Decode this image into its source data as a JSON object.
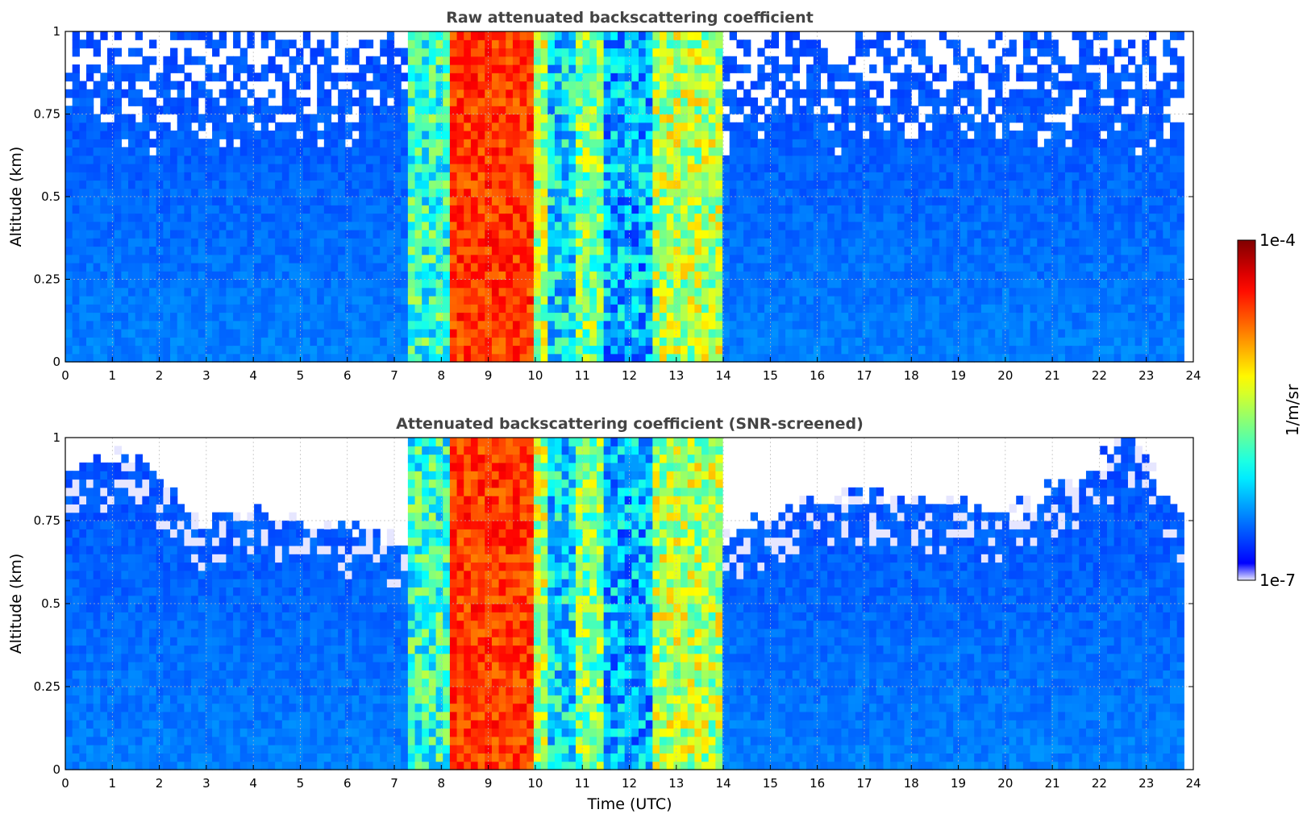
{
  "chart_data": [
    {
      "type": "heatmap",
      "title": "Raw attenuated backscattering coefficient",
      "xlabel": "",
      "ylabel": "Altitude (km)",
      "xlim": [
        0,
        24
      ],
      "ylim": [
        0,
        1
      ],
      "xticks": [
        "0",
        "1",
        "2",
        "3",
        "4",
        "5",
        "6",
        "7",
        "8",
        "9",
        "10",
        "11",
        "12",
        "13",
        "14",
        "15",
        "16",
        "17",
        "18",
        "19",
        "20",
        "21",
        "22",
        "23",
        "24"
      ],
      "yticks": [
        "0",
        "0.25",
        "0.5",
        "0.75",
        "1"
      ],
      "grid": true,
      "data_end_time": 23.8,
      "noise_top_fraction_filled": 0.6,
      "features": [
        {
          "start": 7.25,
          "end": 8.2,
          "kind": "cloud_edge",
          "intensity": 0.42
        },
        {
          "start": 8.2,
          "end": 9.9,
          "kind": "dense_cloud",
          "intensity": 0.82
        },
        {
          "start": 9.9,
          "end": 10.3,
          "kind": "cloud_edge",
          "intensity": 0.55
        },
        {
          "start": 10.3,
          "end": 10.8,
          "kind": "thin_cloud",
          "intensity": 0.35
        },
        {
          "start": 10.8,
          "end": 11.4,
          "kind": "cloud_edge",
          "intensity": 0.5
        },
        {
          "start": 11.4,
          "end": 12.5,
          "kind": "thin_cloud",
          "intensity": 0.3
        },
        {
          "start": 12.5,
          "end": 14.0,
          "kind": "cloud_edge",
          "intensity": 0.55
        }
      ]
    },
    {
      "type": "heatmap",
      "title": "Attenuated backscattering coefficient (SNR-screened)",
      "xlabel": "Time (UTC)",
      "ylabel": "Altitude (km)",
      "xlim": [
        0,
        24
      ],
      "ylim": [
        0,
        1
      ],
      "xticks": [
        "0",
        "1",
        "2",
        "3",
        "4",
        "5",
        "6",
        "7",
        "8",
        "9",
        "10",
        "11",
        "12",
        "13",
        "14",
        "15",
        "16",
        "17",
        "18",
        "19",
        "20",
        "21",
        "22",
        "23",
        "24"
      ],
      "yticks": [
        "0",
        "0.25",
        "0.5",
        "0.75",
        "1"
      ],
      "grid": true,
      "data_end_time": 23.8,
      "screen_top_altitude": [
        {
          "t": 0,
          "alt": 0.9
        },
        {
          "t": 1.5,
          "alt": 0.95
        },
        {
          "t": 2.8,
          "alt": 0.72
        },
        {
          "t": 4.0,
          "alt": 0.78
        },
        {
          "t": 5.5,
          "alt": 0.74
        },
        {
          "t": 7.0,
          "alt": 0.68
        },
        {
          "t": 14.0,
          "alt": 0.7
        },
        {
          "t": 16.0,
          "alt": 0.82
        },
        {
          "t": 18.0,
          "alt": 0.8
        },
        {
          "t": 20.0,
          "alt": 0.76
        },
        {
          "t": 21.5,
          "alt": 0.88
        },
        {
          "t": 22.6,
          "alt": 0.98
        },
        {
          "t": 23.8,
          "alt": 0.72
        }
      ]
    }
  ],
  "colorbar": {
    "label": "1/m/sr",
    "max_label": "1e-4",
    "min_label": "1e-7",
    "colormap": "jet",
    "low_color": "#e6e6ff",
    "high_color": "#800000"
  }
}
